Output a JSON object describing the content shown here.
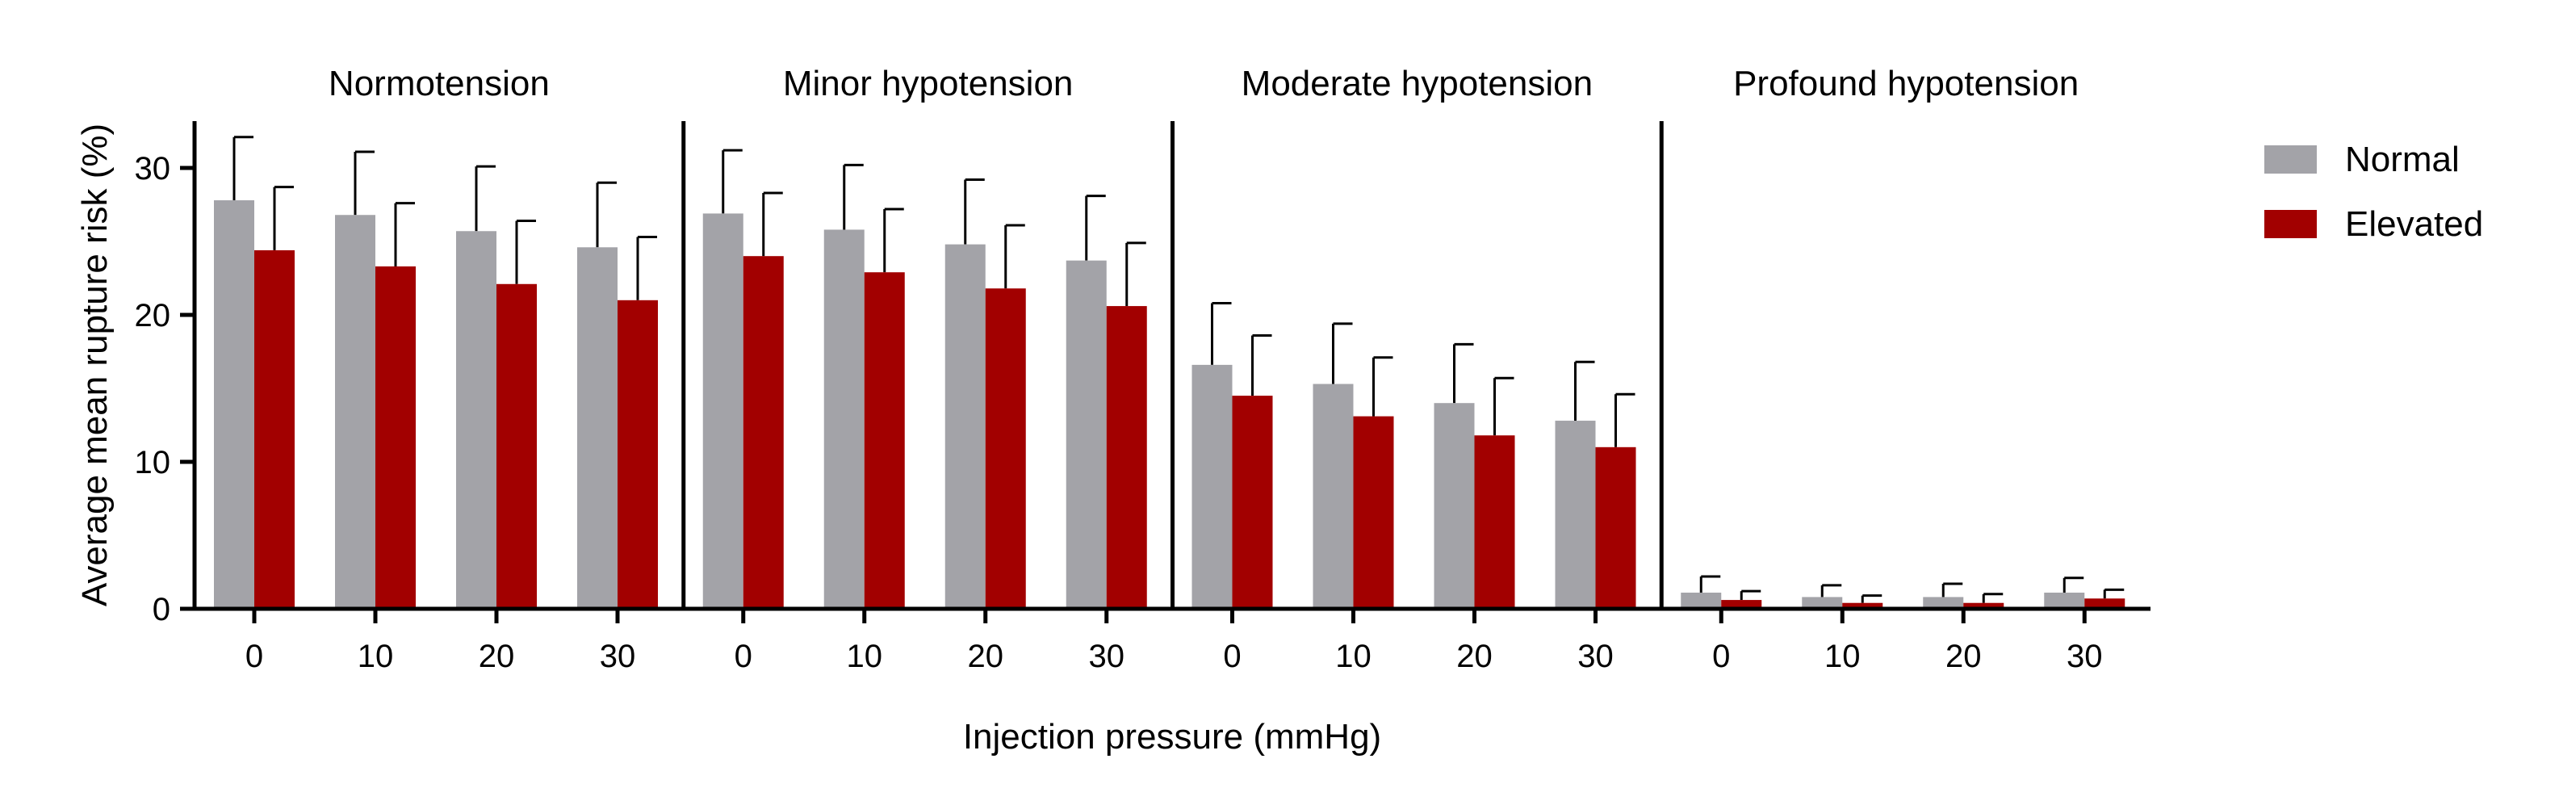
{
  "chart_data": {
    "type": "bar",
    "xlabel": "Injection pressure (mmHg)",
    "ylabel": "Average mean rupture risk (%)",
    "ylim": [
      0,
      33
    ],
    "yticks": [
      0,
      10,
      20,
      30
    ],
    "categories": [
      "0",
      "10",
      "20",
      "30"
    ],
    "legend_position": "right",
    "grid": false,
    "series_meta": [
      {
        "name": "Normal",
        "color": "#a3a3a8"
      },
      {
        "name": "Elevated",
        "color": "#a20000"
      }
    ],
    "panels": [
      {
        "title": "Normotension",
        "series": [
          {
            "name": "Normal",
            "values": [
              27.8,
              26.8,
              25.7,
              24.6
            ],
            "errors": [
              4.3,
              4.3,
              4.4,
              4.4
            ]
          },
          {
            "name": "Elevated",
            "values": [
              24.4,
              23.3,
              22.1,
              21.0
            ],
            "errors": [
              4.3,
              4.3,
              4.3,
              4.3
            ]
          }
        ]
      },
      {
        "title": "Minor hypotension",
        "series": [
          {
            "name": "Normal",
            "values": [
              26.9,
              25.8,
              24.8,
              23.7
            ],
            "errors": [
              4.3,
              4.4,
              4.4,
              4.4
            ]
          },
          {
            "name": "Elevated",
            "values": [
              24.0,
              22.9,
              21.8,
              20.6
            ],
            "errors": [
              4.3,
              4.3,
              4.3,
              4.3
            ]
          }
        ]
      },
      {
        "title": "Moderate hypotension",
        "series": [
          {
            "name": "Normal",
            "values": [
              16.6,
              15.3,
              14.0,
              12.8
            ],
            "errors": [
              4.2,
              4.1,
              4.0,
              4.0
            ]
          },
          {
            "name": "Elevated",
            "values": [
              14.5,
              13.1,
              11.8,
              11.0
            ],
            "errors": [
              4.1,
              4.0,
              3.9,
              3.6
            ]
          }
        ]
      },
      {
        "title": "Profound hypotension",
        "series": [
          {
            "name": "Normal",
            "values": [
              1.1,
              0.8,
              0.8,
              1.1
            ],
            "errors": [
              1.1,
              0.8,
              0.9,
              1.0
            ]
          },
          {
            "name": "Elevated",
            "values": [
              0.6,
              0.4,
              0.4,
              0.7
            ],
            "errors": [
              0.6,
              0.5,
              0.6,
              0.6
            ]
          }
        ]
      }
    ]
  }
}
